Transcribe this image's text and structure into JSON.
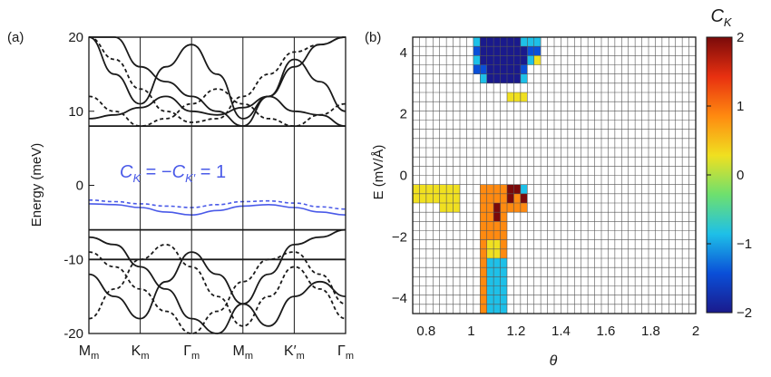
{
  "chart_data": [
    {
      "panel_label": "(a)",
      "type": "line",
      "ylabel": "Energy (meV)",
      "ylim": [
        -20,
        20
      ],
      "yticks": [
        "-20",
        "-10",
        "0",
        "10",
        "20"
      ],
      "xticks": [
        {
          "main": "M",
          "sub": "m"
        },
        {
          "main": "K",
          "sub": "m"
        },
        {
          "main": "Γ",
          "sub": "m"
        },
        {
          "main": "M",
          "sub": "m"
        },
        {
          "main": "K′",
          "sub": "m"
        },
        {
          "main": "Γ",
          "sub": "m"
        }
      ],
      "annotation": {
        "c1": "C",
        "s1": "K",
        "mid": " = −",
        "c2": "C",
        "s2": "K′",
        "end": " = 1"
      },
      "series": [
        {
          "style": "solid",
          "color": "#1a1a1a",
          "x": [
            0,
            1,
            2,
            3,
            4,
            5,
            6,
            7,
            8,
            9,
            10
          ],
          "y": [
            20,
            15,
            11,
            16,
            19,
            15,
            9,
            12,
            17,
            14,
            10
          ]
        },
        {
          "style": "solid",
          "color": "#1a1a1a",
          "x": [
            0,
            1,
            2,
            3,
            4,
            5,
            6,
            7,
            8,
            9,
            10
          ],
          "y": [
            20,
            20,
            16,
            14,
            12,
            10,
            8,
            12,
            16,
            19,
            20
          ]
        },
        {
          "style": "solid",
          "color": "#1a1a1a",
          "x": [
            0,
            1,
            2,
            3,
            4,
            5,
            6,
            7,
            8,
            9,
            10
          ],
          "y": [
            8,
            8,
            8,
            8,
            8,
            8,
            8,
            8,
            8,
            8,
            8
          ]
        },
        {
          "style": "solid",
          "color": "#1a1a1a",
          "x": [
            0,
            1,
            2,
            3,
            4,
            5,
            6,
            7,
            8,
            9,
            10
          ],
          "y": [
            9,
            9.5,
            10.5,
            12,
            10,
            9.5,
            10.5,
            12,
            10,
            9.5,
            8
          ]
        },
        {
          "style": "dashed",
          "color": "#1a1a1a",
          "x": [
            0,
            1,
            2,
            3,
            4,
            5,
            6,
            7,
            8,
            9,
            10
          ],
          "y": [
            20,
            17,
            13,
            10,
            8.5,
            9,
            12,
            15,
            18,
            19,
            20
          ]
        },
        {
          "style": "dashed",
          "color": "#1a1a1a",
          "x": [
            0,
            1,
            2,
            3,
            4,
            5,
            6,
            7,
            8,
            9,
            10
          ],
          "y": [
            12,
            10,
            8,
            9,
            11,
            13,
            11,
            9,
            8,
            9.5,
            11
          ]
        },
        {
          "style": "solid",
          "color": "#4a5ae8",
          "x": [
            0,
            1,
            2,
            3,
            4,
            5,
            6,
            7,
            8,
            9,
            10
          ],
          "y": [
            -2.5,
            -2.6,
            -3,
            -3.6,
            -4,
            -3.4,
            -2.8,
            -2.6,
            -3,
            -3.6,
            -4
          ]
        },
        {
          "style": "dashed",
          "color": "#4a5ae8",
          "x": [
            0,
            1,
            2,
            3,
            4,
            5,
            6,
            7,
            8,
            9,
            10
          ],
          "y": [
            -2,
            -2.2,
            -2.5,
            -2.8,
            -3,
            -2.6,
            -2.2,
            -2.1,
            -2.4,
            -2.9,
            -3.2
          ]
        },
        {
          "style": "solid",
          "color": "#1a1a1a",
          "x": [
            0,
            1,
            2,
            3,
            4,
            5,
            6,
            7,
            8,
            9,
            10
          ],
          "y": [
            -6,
            -6,
            -6,
            -6,
            -6,
            -6,
            -6,
            -6,
            -6,
            -6,
            -6
          ]
        },
        {
          "style": "solid",
          "color": "#1a1a1a",
          "x": [
            0,
            1,
            2,
            3,
            4,
            5,
            6,
            7,
            8,
            9,
            10
          ],
          "y": [
            -10,
            -10,
            -10,
            -10,
            -10,
            -10,
            -10,
            -10,
            -10,
            -10,
            -10
          ]
        },
        {
          "style": "solid",
          "color": "#1a1a1a",
          "x": [
            0,
            1,
            2,
            3,
            4,
            5,
            6,
            7,
            8,
            9,
            10
          ],
          "y": [
            -12,
            -15,
            -18,
            -13,
            -9,
            -12,
            -16,
            -19,
            -15,
            -13,
            -15
          ]
        },
        {
          "style": "solid",
          "color": "#1a1a1a",
          "x": [
            0,
            1,
            2,
            3,
            4,
            5,
            6,
            7,
            8,
            9,
            10
          ],
          "y": [
            -7,
            -8,
            -11,
            -14,
            -18,
            -20,
            -16,
            -12,
            -8,
            -7,
            -6
          ]
        },
        {
          "style": "dashed",
          "color": "#1a1a1a",
          "x": [
            0,
            1,
            2,
            3,
            4,
            5,
            6,
            7,
            8,
            9,
            10
          ],
          "y": [
            -18,
            -14,
            -10,
            -8,
            -11,
            -15,
            -19,
            -15,
            -11,
            -14,
            -18
          ]
        },
        {
          "style": "dashed",
          "color": "#1a1a1a",
          "x": [
            0,
            1,
            2,
            3,
            4,
            5,
            6,
            7,
            8,
            9,
            10
          ],
          "y": [
            -9,
            -11,
            -14,
            -17,
            -20,
            -17,
            -13,
            -10,
            -9,
            -12,
            -16
          ]
        }
      ]
    },
    {
      "panel_label": "(b)",
      "type": "heatmap",
      "xlabel": "θ",
      "ylabel": "E  (mV/Å)",
      "xlim": [
        0.74,
        2.0
      ],
      "ylim": [
        -4.5,
        4.5
      ],
      "x_step": 0.03,
      "y_step": 0.3,
      "xticks": [
        "0.8",
        "1",
        "1.2",
        "1.4",
        "1.6",
        "1.8",
        "2"
      ],
      "yticks": [
        "−4",
        "−2",
        "0",
        "2",
        "4"
      ],
      "grid": true,
      "colorbar": {
        "title_main": "C",
        "title_sub": "K",
        "range": [
          -2,
          2
        ],
        "ticks": [
          "2",
          "1",
          "0",
          "−1",
          "−2"
        ],
        "colors": [
          "#1a1a8c",
          "#0a4fd8",
          "#1ec0e8",
          "#6ee06e",
          "#f0e020",
          "#ff8a10",
          "#e83010",
          "#7a0a0a"
        ]
      },
      "cells": [
        {
          "x0": 1.01,
          "e0": 4.2,
          "nx": 1,
          "ne": 1,
          "value": -1
        },
        {
          "x0": 1.04,
          "e0": 4.2,
          "nx": 6,
          "ne": 1,
          "value": -2
        },
        {
          "x0": 1.22,
          "e0": 4.2,
          "nx": 3,
          "ne": 1,
          "value": -1
        },
        {
          "x0": 1.01,
          "e0": 3.9,
          "nx": 1,
          "ne": 1,
          "value": -1.5
        },
        {
          "x0": 1.04,
          "e0": 3.9,
          "nx": 7,
          "ne": 1,
          "value": -2
        },
        {
          "x0": 1.25,
          "e0": 3.9,
          "nx": 2,
          "ne": 1,
          "value": -1.5
        },
        {
          "x0": 1.01,
          "e0": 3.6,
          "nx": 1,
          "ne": 1,
          "value": -1
        },
        {
          "x0": 1.04,
          "e0": 3.6,
          "nx": 7,
          "ne": 1,
          "value": -2
        },
        {
          "x0": 1.25,
          "e0": 3.6,
          "nx": 1,
          "ne": 1,
          "value": -1
        },
        {
          "x0": 1.28,
          "e0": 3.6,
          "nx": 1,
          "ne": 1,
          "value": 0
        },
        {
          "x0": 1.01,
          "e0": 3.3,
          "nx": 2,
          "ne": 1,
          "value": -1.5
        },
        {
          "x0": 1.07,
          "e0": 3.3,
          "nx": 5,
          "ne": 1,
          "value": -2
        },
        {
          "x0": 1.22,
          "e0": 3.3,
          "nx": 1,
          "ne": 1,
          "value": -1.5
        },
        {
          "x0": 1.04,
          "e0": 3.0,
          "nx": 1,
          "ne": 1,
          "value": -1
        },
        {
          "x0": 1.07,
          "e0": 3.0,
          "nx": 5,
          "ne": 1,
          "value": -2
        },
        {
          "x0": 1.22,
          "e0": 3.0,
          "nx": 1,
          "ne": 1,
          "value": -1
        },
        {
          "x0": 1.16,
          "e0": 2.4,
          "nx": 3,
          "ne": 1,
          "value": 0
        },
        {
          "x0": 0.74,
          "e0": -0.9,
          "nx": 7,
          "ne": 2,
          "value": 0
        },
        {
          "x0": 1.04,
          "e0": -0.9,
          "nx": 4,
          "ne": 2,
          "value": 1
        },
        {
          "x0": 1.16,
          "e0": -0.9,
          "nx": 2,
          "ne": 2,
          "value": 2
        },
        {
          "x0": 1.22,
          "e0": -0.9,
          "nx": 1,
          "ne": 1,
          "value": 2
        },
        {
          "x0": 1.22,
          "e0": -0.6,
          "nx": 1,
          "ne": 1,
          "value": -1
        },
        {
          "x0": 1.19,
          "e0": -0.9,
          "nx": 1,
          "ne": 1,
          "value": 1
        },
        {
          "x0": 0.86,
          "e0": -1.2,
          "nx": 3,
          "ne": 1,
          "value": 0
        },
        {
          "x0": 1.04,
          "e0": -1.2,
          "nx": 2,
          "ne": 1,
          "value": 1
        },
        {
          "x0": 1.1,
          "e0": -1.2,
          "nx": 1,
          "ne": 1,
          "value": 2
        },
        {
          "x0": 1.13,
          "e0": -1.2,
          "nx": 4,
          "ne": 1,
          "value": 1
        },
        {
          "x0": 1.04,
          "e0": -2.1,
          "nx": 1,
          "ne": 3,
          "value": 1
        },
        {
          "x0": 1.07,
          "e0": -2.1,
          "nx": 3,
          "ne": 3,
          "value": 1
        },
        {
          "x0": 1.1,
          "e0": -1.5,
          "nx": 1,
          "ne": 1,
          "value": 2
        },
        {
          "x0": 1.04,
          "e0": -2.7,
          "nx": 1,
          "ne": 2,
          "value": 1
        },
        {
          "x0": 1.07,
          "e0": -2.7,
          "nx": 2,
          "ne": 2,
          "value": 0
        },
        {
          "x0": 1.13,
          "e0": -2.7,
          "nx": 1,
          "ne": 2,
          "value": 1
        },
        {
          "x0": 1.04,
          "e0": -4.5,
          "nx": 1,
          "ne": 6,
          "value": 1
        },
        {
          "x0": 1.07,
          "e0": -4.5,
          "nx": 3,
          "ne": 6,
          "value": -1
        }
      ]
    }
  ]
}
